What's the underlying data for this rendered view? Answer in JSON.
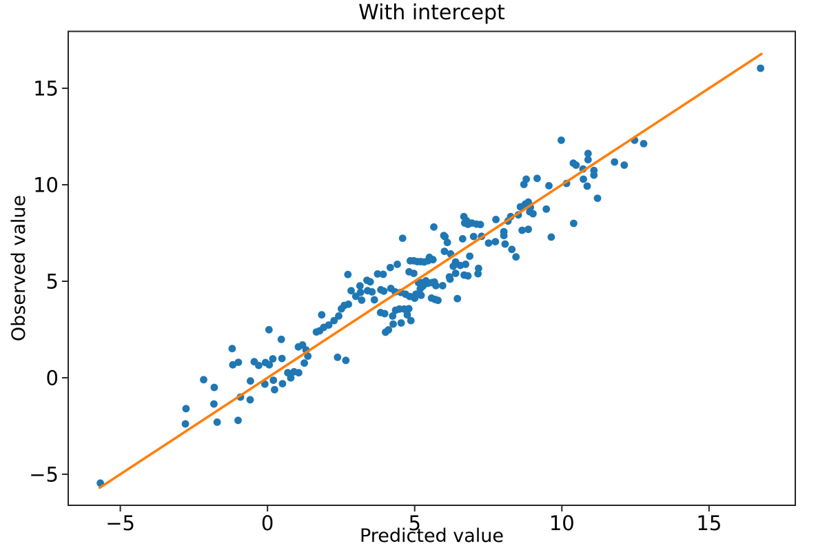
{
  "title": "With intercept",
  "chart_data": {
    "type": "scatter",
    "title": "With intercept",
    "xlabel": "Predicted value",
    "ylabel": "Observed value",
    "xlim": [
      -6.77,
      17.93
    ],
    "ylim": [
      -6.61,
      17.95
    ],
    "xticks": [
      -5,
      0,
      5,
      10,
      15
    ],
    "yticks": [
      -5,
      0,
      5,
      10,
      15
    ],
    "xtick_labels": [
      "−5",
      "0",
      "5",
      "10",
      "15"
    ],
    "ytick_labels": [
      "−5",
      "0",
      "5",
      "10",
      "15"
    ],
    "grid": false,
    "legend": "none",
    "axis_color": "#262626",
    "series": [
      {
        "name": "observations",
        "kind": "scatter",
        "color": "#1f77b4",
        "marker_radius": 5.4,
        "points": [
          [
            -5.68,
            -5.46
          ],
          [
            -2.79,
            -2.39
          ],
          [
            -2.77,
            -1.6
          ],
          [
            -2.17,
            -0.1
          ],
          [
            -1.82,
            -1.36
          ],
          [
            -1.81,
            -0.5
          ],
          [
            -1.71,
            -2.3
          ],
          [
            -1.2,
            1.51
          ],
          [
            -1.18,
            0.67
          ],
          [
            -1.0,
            -2.21
          ],
          [
            -0.99,
            0.8
          ],
          [
            -0.92,
            -1.0
          ],
          [
            -0.59,
            -1.14
          ],
          [
            -0.58,
            -0.17
          ],
          [
            -0.45,
            0.83
          ],
          [
            -0.3,
            0.64
          ],
          [
            -0.09,
            -0.33
          ],
          [
            -0.07,
            0.79
          ],
          [
            0.05,
            2.49
          ],
          [
            0.06,
            0.67
          ],
          [
            0.18,
            0.98
          ],
          [
            0.2,
            -0.13
          ],
          [
            0.24,
            -0.62
          ],
          [
            0.47,
            1.99
          ],
          [
            0.49,
            1.0
          ],
          [
            0.51,
            -0.31
          ],
          [
            0.69,
            0.26
          ],
          [
            0.79,
            -0.01
          ],
          [
            0.9,
            0.31
          ],
          [
            1.05,
            1.6
          ],
          [
            1.06,
            0.26
          ],
          [
            1.19,
            1.7
          ],
          [
            1.25,
            0.76
          ],
          [
            1.31,
            1.44
          ],
          [
            1.37,
            1.12
          ],
          [
            1.66,
            2.37
          ],
          [
            1.77,
            2.43
          ],
          [
            1.84,
            3.26
          ],
          [
            1.91,
            2.61
          ],
          [
            2.08,
            2.73
          ],
          [
            2.26,
            2.96
          ],
          [
            2.38,
            1.06
          ],
          [
            2.42,
            3.2
          ],
          [
            2.51,
            3.57
          ],
          [
            2.61,
            3.75
          ],
          [
            2.66,
            0.9
          ],
          [
            2.73,
            5.35
          ],
          [
            2.75,
            3.81
          ],
          [
            2.84,
            4.51
          ],
          [
            3.0,
            4.22
          ],
          [
            3.14,
            4.76
          ],
          [
            3.16,
            4.42
          ],
          [
            3.2,
            4.02
          ],
          [
            3.38,
            5.05
          ],
          [
            3.4,
            4.51
          ],
          [
            3.49,
            4.97
          ],
          [
            3.55,
            4.45
          ],
          [
            3.63,
            4.04
          ],
          [
            3.74,
            5.38
          ],
          [
            3.84,
            3.38
          ],
          [
            3.85,
            4.56
          ],
          [
            3.93,
            5.36
          ],
          [
            3.95,
            4.49
          ],
          [
            3.98,
            3.32
          ],
          [
            4.01,
            2.36
          ],
          [
            4.11,
            2.48
          ],
          [
            4.17,
            5.71
          ],
          [
            4.19,
            4.63
          ],
          [
            4.25,
            3.2
          ],
          [
            4.27,
            2.78
          ],
          [
            4.34,
            4.45
          ],
          [
            4.35,
            3.5
          ],
          [
            4.41,
            5.88
          ],
          [
            4.48,
            3.56
          ],
          [
            4.53,
            4.42
          ],
          [
            4.54,
            2.84
          ],
          [
            4.59,
            7.23
          ],
          [
            4.64,
            3.56
          ],
          [
            4.69,
            4.33
          ],
          [
            4.75,
            3.26
          ],
          [
            4.8,
            3.58
          ],
          [
            4.81,
            5.49
          ],
          [
            4.83,
            4.21
          ],
          [
            4.85,
            6.06
          ],
          [
            4.87,
            2.96
          ],
          [
            4.97,
            5.41
          ],
          [
            4.97,
            6.06
          ],
          [
            5.0,
            4.12
          ],
          [
            5.04,
            4.33
          ],
          [
            5.09,
            6.02
          ],
          [
            5.13,
            4.93
          ],
          [
            5.19,
            4.61
          ],
          [
            5.2,
            6.02
          ],
          [
            5.22,
            4.27
          ],
          [
            5.23,
            4.93
          ],
          [
            5.28,
            4.75
          ],
          [
            5.32,
            6.0
          ],
          [
            5.38,
            5.02
          ],
          [
            5.44,
            4.89
          ],
          [
            5.45,
            6.06
          ],
          [
            5.5,
            6.24
          ],
          [
            5.57,
            4.13
          ],
          [
            5.58,
            4.93
          ],
          [
            5.62,
            6.12
          ],
          [
            5.65,
            7.81
          ],
          [
            5.67,
            4.96
          ],
          [
            5.69,
            4.06
          ],
          [
            5.72,
            4.77
          ],
          [
            5.79,
            4.01
          ],
          [
            5.95,
            4.77
          ],
          [
            5.99,
            7.37
          ],
          [
            6.01,
            6.55
          ],
          [
            6.03,
            7.31
          ],
          [
            6.11,
            7.01
          ],
          [
            6.18,
            5.23
          ],
          [
            6.2,
            5.11
          ],
          [
            6.22,
            6.42
          ],
          [
            6.31,
            5.78
          ],
          [
            6.39,
            5.41
          ],
          [
            6.39,
            6.0
          ],
          [
            6.45,
            4.1
          ],
          [
            6.55,
            5.82
          ],
          [
            6.63,
            7.2
          ],
          [
            6.67,
            8.35
          ],
          [
            6.68,
            5.32
          ],
          [
            6.7,
            8.02
          ],
          [
            6.73,
            5.88
          ],
          [
            6.76,
            8.14
          ],
          [
            6.81,
            5.28
          ],
          [
            6.81,
            7.95
          ],
          [
            6.87,
            6.3
          ],
          [
            6.94,
            8.02
          ],
          [
            7.0,
            7.32
          ],
          [
            7.1,
            7.96
          ],
          [
            7.15,
            5.39
          ],
          [
            7.17,
            5.67
          ],
          [
            7.23,
            7.94
          ],
          [
            7.27,
            7.33
          ],
          [
            7.51,
            6.98
          ],
          [
            7.74,
            7.05
          ],
          [
            7.76,
            8.2
          ],
          [
            8.03,
            7.37
          ],
          [
            8.03,
            7.57
          ],
          [
            8.07,
            6.93
          ],
          [
            8.17,
            8.12
          ],
          [
            8.26,
            8.35
          ],
          [
            8.3,
            6.65
          ],
          [
            8.44,
            6.26
          ],
          [
            8.52,
            8.44
          ],
          [
            8.59,
            8.86
          ],
          [
            8.65,
            7.64
          ],
          [
            8.71,
            10.02
          ],
          [
            8.76,
            9.0
          ],
          [
            8.77,
            8.93
          ],
          [
            8.79,
            10.29
          ],
          [
            8.86,
            7.69
          ],
          [
            8.86,
            9.1
          ],
          [
            8.91,
            8.6
          ],
          [
            8.93,
            8.83
          ],
          [
            9.02,
            8.5
          ],
          [
            9.16,
            10.33
          ],
          [
            9.47,
            8.74
          ],
          [
            9.56,
            9.95
          ],
          [
            9.64,
            7.29
          ],
          [
            9.98,
            12.31
          ],
          [
            10.16,
            10.07
          ],
          [
            10.39,
            11.12
          ],
          [
            10.4,
            8.0
          ],
          [
            10.48,
            11.02
          ],
          [
            10.72,
            10.82
          ],
          [
            10.73,
            10.29
          ],
          [
            10.86,
            9.93
          ],
          [
            10.89,
            11.3
          ],
          [
            10.89,
            11.62
          ],
          [
            11.09,
            10.5
          ],
          [
            11.09,
            10.74
          ],
          [
            11.21,
            9.3
          ],
          [
            11.79,
            11.18
          ],
          [
            12.12,
            11.02
          ],
          [
            12.47,
            12.31
          ],
          [
            12.78,
            12.13
          ],
          [
            16.75,
            16.04
          ]
        ]
      },
      {
        "name": "identity-line",
        "kind": "line",
        "color": "#ff7f0e",
        "line_width": 3.6,
        "points": [
          [
            -5.7,
            -5.7
          ],
          [
            16.78,
            16.78
          ]
        ]
      }
    ]
  }
}
